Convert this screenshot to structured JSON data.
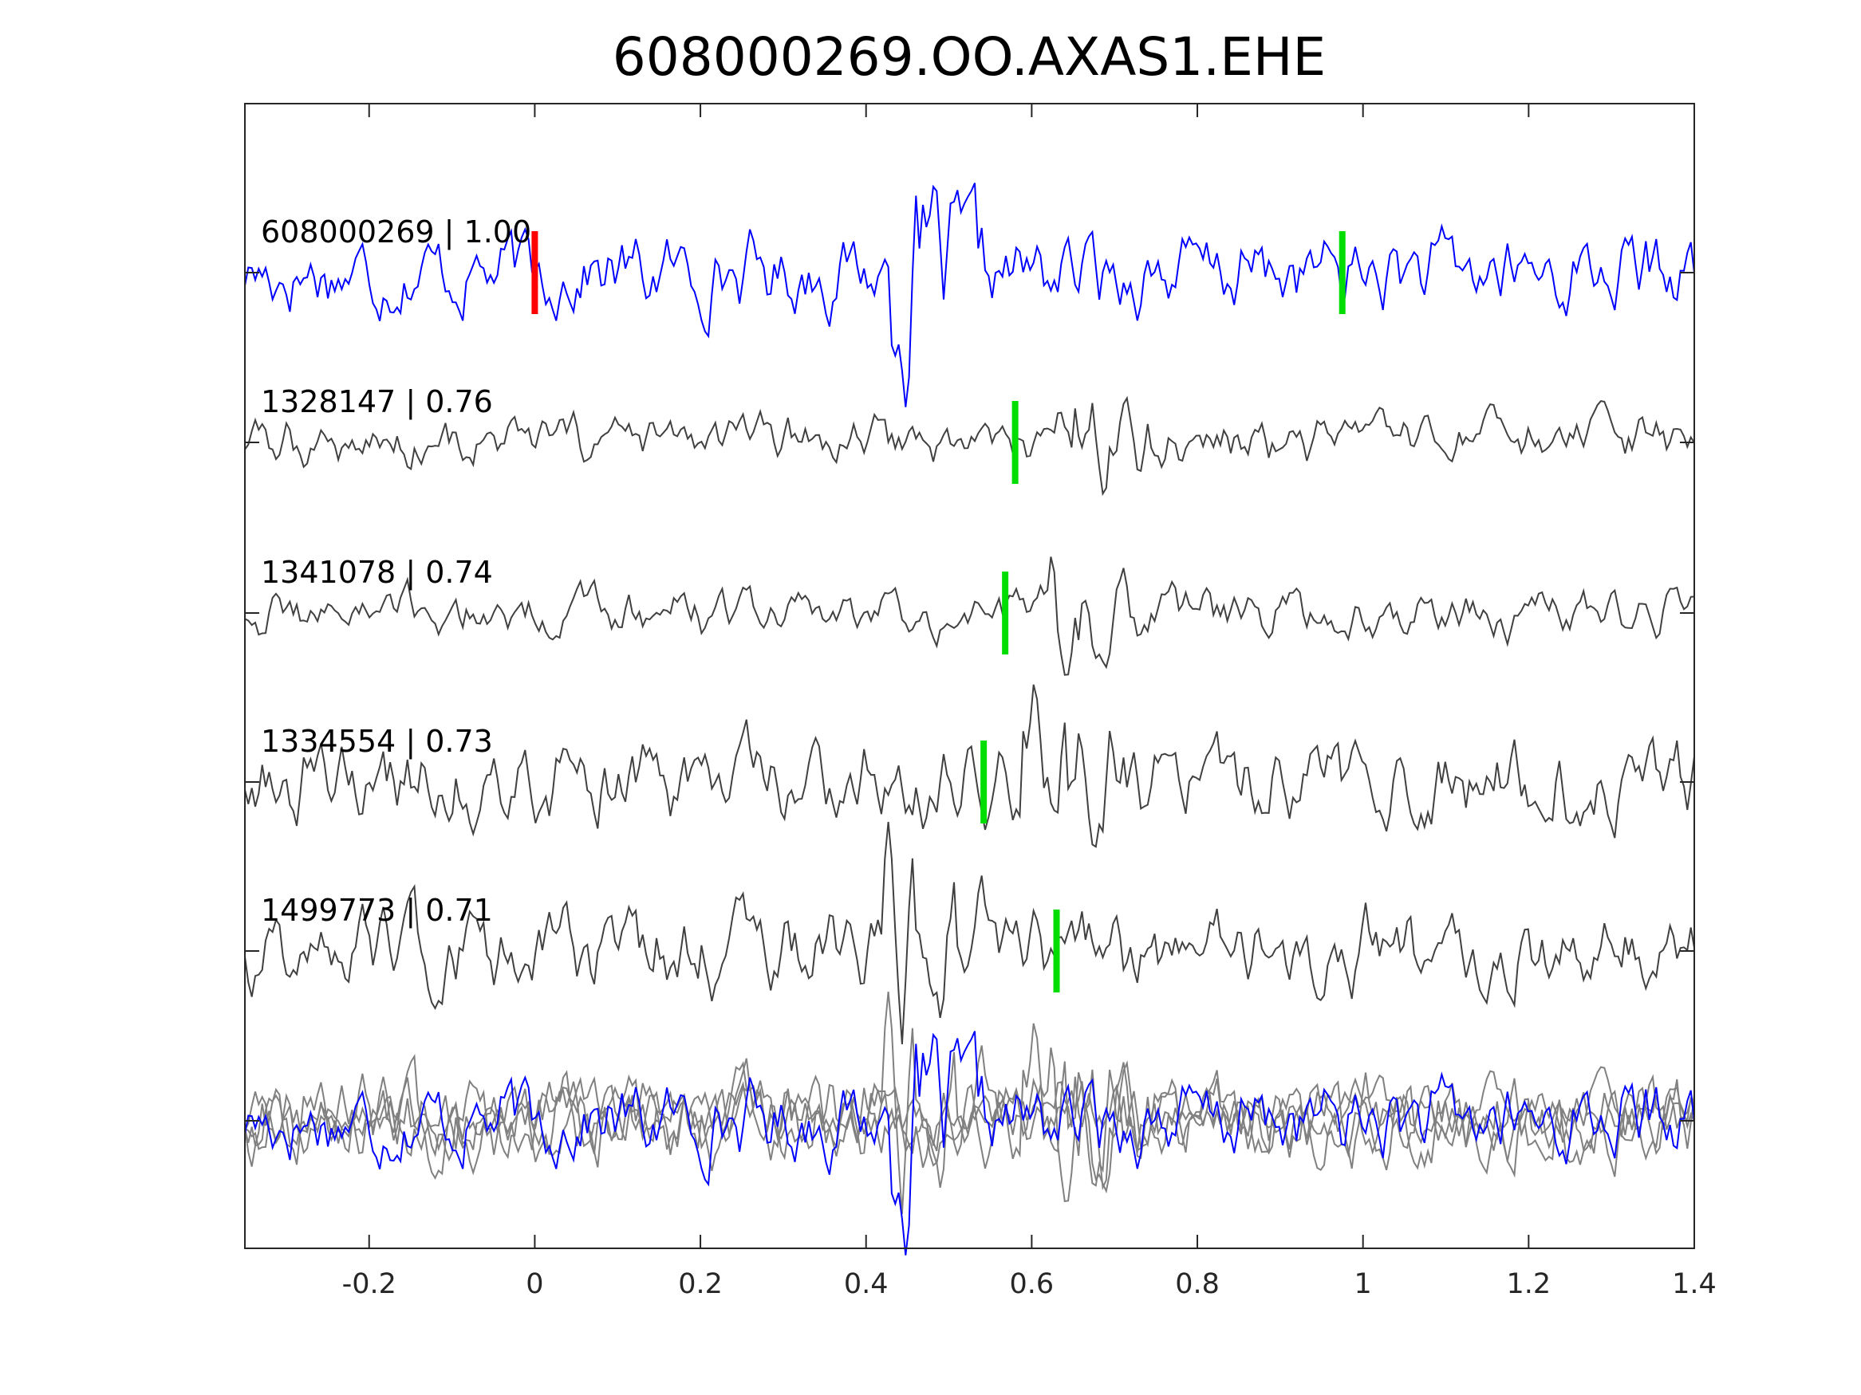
{
  "chart_data": {
    "type": "line",
    "title": "608000269.OO.AXAS1.EHE",
    "xlabel": "",
    "ylabel": "",
    "xlim": [
      -0.35,
      1.4
    ],
    "xticks": [
      -0.2,
      0,
      0.2,
      0.4,
      0.6,
      0.8,
      1,
      1.2,
      1.4
    ],
    "xtick_labels": [
      "-0.2",
      "0",
      "0.2",
      "0.4",
      "0.6",
      "0.8",
      "1",
      "1.2",
      "1.4"
    ],
    "grid": false,
    "colors": {
      "master": "#0000ff",
      "trace": "#404040",
      "stack_trace": "#808080",
      "reference_pick": "#ff0000",
      "pick": "#00dd00"
    },
    "traces": [
      {
        "id": "608000269",
        "cc": "1.00",
        "label": "608000269 | 1.00",
        "color": "#0000ff",
        "ref_pick": 0.0,
        "pick": 0.975,
        "event_time": 0.43
      },
      {
        "id": "1328147",
        "cc": "0.76",
        "label": "1328147 | 0.76",
        "color": "#404040",
        "pick": 0.58,
        "event_time": 0.63
      },
      {
        "id": "1341078",
        "cc": "0.74",
        "label": "1341078 | 0.74",
        "color": "#404040",
        "pick": 0.568,
        "event_time": 0.61
      },
      {
        "id": "1334554",
        "cc": "0.73",
        "label": "1334554 | 0.73",
        "color": "#404040",
        "pick": 0.542,
        "event_time": 0.58
      },
      {
        "id": "1499773",
        "cc": "0.71",
        "label": "1499773 | 0.71",
        "color": "#404040",
        "pick": 0.63,
        "event_time": 0.42
      }
    ],
    "stack": {
      "description_visible": false
    }
  }
}
